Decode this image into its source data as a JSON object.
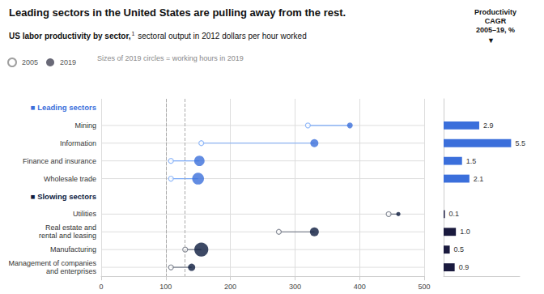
{
  "chart_data": [
    {
      "type": "scatter",
      "title": "Leading sectors in the United States are pulling away from the rest.",
      "subtitle": [
        "US labor productivity by sector,",
        "1",
        " sectoral output in 2012 dollars per hour worked"
      ],
      "categories": [
        "■ Leading sectors",
        "Mining",
        "Information",
        "Finance and insurance",
        "Wholesale trade",
        "■ Slowing sectors",
        "Utilities",
        "Real estate and\nrental and leasing",
        "Manufacturing",
        "Management of companies\nand enterprises"
      ],
      "category_colors": [
        "#3b6fdb",
        "#333333",
        "#333333",
        "#333333",
        "#333333",
        "#0d1b3e",
        "#333333",
        "#333333",
        "#333333",
        "#333333"
      ],
      "series": [
        {
          "name": "2005",
          "type": "scatter",
          "marker": "circle-open",
          "color": "#888888",
          "colors": [
            null,
            "#7baaf7",
            "#7baaf7",
            "#7baaf7",
            "#7baaf7",
            null,
            "#6b7280",
            "#6b7280",
            "#6b7280",
            "#6b7280"
          ],
          "values": [
            null,
            320,
            155,
            108,
            108,
            null,
            445,
            275,
            130,
            108
          ]
        },
        {
          "name": "2019",
          "type": "scatter",
          "marker": "circle",
          "color": "#444455",
          "colors": [
            null,
            "#3b6fdb",
            "#3b6fdb",
            "#3b6fdb",
            "#3b6fdb",
            null,
            "#0d1b3e",
            "#0d1b3e",
            "#0d1b3e",
            "#0d1b3e"
          ],
          "values": [
            null,
            385,
            330,
            152,
            150,
            null,
            460,
            330,
            155,
            140
          ],
          "sizes": [
            null,
            100,
            200,
            330,
            430,
            null,
            55,
            240,
            600,
            160
          ]
        }
      ],
      "xlim": [
        0,
        500
      ],
      "xticks": [
        0,
        100,
        200,
        300,
        400,
        500
      ],
      "reference_lines": [
        100,
        130
      ],
      "grid": true,
      "legend": "top-left",
      "annotations": [
        "Sizes of 2019 circles = working hours in 2019"
      ]
    },
    {
      "type": "bar",
      "orientation": "horizontal",
      "title": "Productivity\nCAGR\n2005–19, %",
      "annotations": [
        "▼"
      ],
      "categories": [
        "■ Leading sectors",
        "Mining",
        "Information",
        "Finance and insurance",
        "Wholesale trade",
        "■ Slowing sectors",
        "Utilities",
        "Real estate and\nrental and leasing",
        "Manufacturing",
        "Management of companies\nand enterprises"
      ],
      "values": [
        null,
        2.9,
        5.5,
        1.5,
        2.1,
        null,
        0.1,
        1.0,
        0.5,
        0.9
      ],
      "value_labels": [
        null,
        "2.9",
        "5.5",
        "1.5",
        "2.1",
        null,
        "0.1",
        "1.0",
        "0.5",
        "0.9"
      ],
      "colors": [
        null,
        "#3b6fdb",
        "#3b6fdb",
        "#3b6fdb",
        "#3b6fdb",
        null,
        "#1a1a3e",
        "#1a1a3e",
        "#1a1a3e",
        "#1a1a3e"
      ],
      "xlim": [
        0,
        6.2
      ],
      "tick_labels": false,
      "data_labels": true
    }
  ]
}
